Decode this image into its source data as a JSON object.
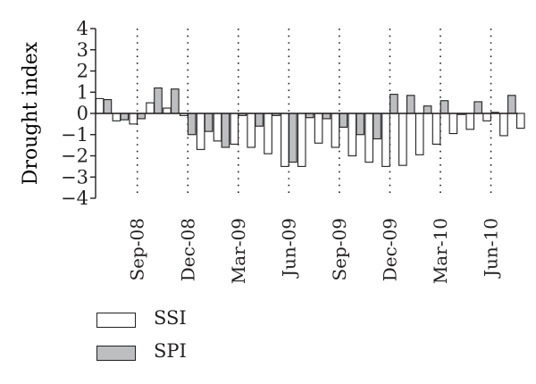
{
  "chart_data": {
    "type": "bar",
    "ylabel": "Drought index",
    "ylim": [
      -4,
      4
    ],
    "yticks": [
      "4",
      "3",
      "2",
      "1",
      "0",
      "−1",
      "−2",
      "−3",
      "−4"
    ],
    "xtick_labels": [
      "Sep-08",
      "Dec-08",
      "Mar-09",
      "Jun-09",
      "Sep-09",
      "Dec-09",
      "Mar-10",
      "Jun-10"
    ],
    "grid": "vertical dotted",
    "legend_position": "bottom-left",
    "series": [
      {
        "name": "SSI",
        "color": "#ffffff",
        "values": [
          0.7,
          -0.35,
          -0.5,
          0.5,
          0.25,
          -0.1,
          -1.7,
          -1.3,
          -1.45,
          -1.6,
          -1.9,
          -2.5,
          -2.5,
          -1.4,
          -1.6,
          -2.0,
          -2.3,
          -2.5,
          -2.45,
          -1.95,
          -1.45,
          -0.95,
          -0.75,
          -0.35,
          -1.05,
          -0.7
        ]
      },
      {
        "name": "SPI",
        "color": "#bcbec0",
        "values": [
          0.65,
          -0.3,
          -0.25,
          1.2,
          1.15,
          -1.0,
          -0.85,
          -1.6,
          -0.1,
          -0.6,
          -0.1,
          -2.3,
          -0.2,
          -0.25,
          -0.65,
          -1.0,
          -1.2,
          0.9,
          0.85,
          0.35,
          0.6,
          -0.05,
          0.55,
          0.05,
          0.85,
          0.0
        ]
      }
    ]
  }
}
